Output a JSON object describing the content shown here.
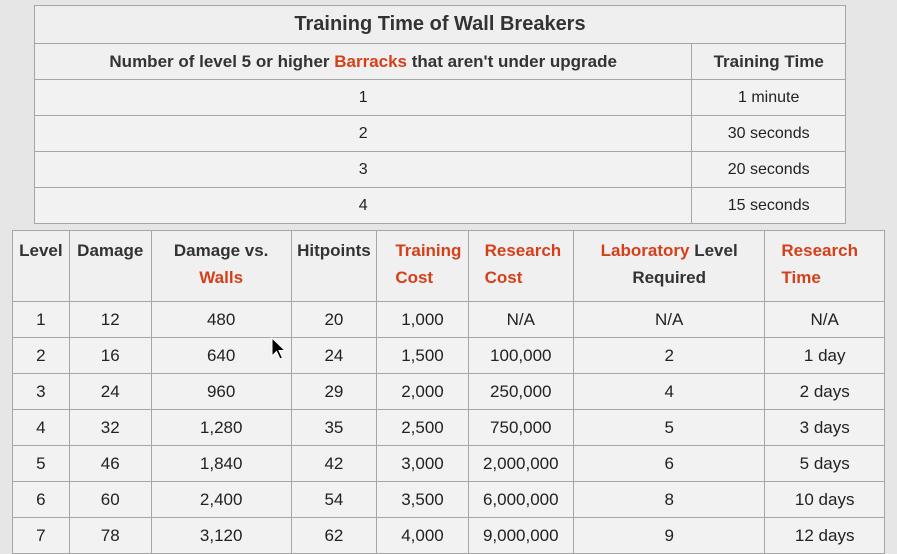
{
  "training_time_table": {
    "caption": "Training Time of Wall Breakers",
    "headers": {
      "barracks_prefix": "Number of level 5 or higher ",
      "barracks_link": "Barracks",
      "barracks_suffix": " that aren't under upgrade",
      "training_time": "Training Time"
    },
    "rows": [
      {
        "barracks": "1",
        "time": "1 minute"
      },
      {
        "barracks": "2",
        "time": "30 seconds"
      },
      {
        "barracks": "3",
        "time": "20 seconds"
      },
      {
        "barracks": "4",
        "time": "15 seconds"
      }
    ]
  },
  "stats_table": {
    "headers": {
      "level": "Level",
      "damage": "Damage",
      "damage_vs_prefix": "Damage vs.",
      "damage_vs_link": "Walls",
      "hitpoints": "Hitpoints",
      "training_cost_1": "Training",
      "training_cost_2": "Cost",
      "research_cost_1": "Research",
      "research_cost_2": "Cost",
      "lab_link": "Laboratory",
      "lab_suffix": " Level",
      "lab_line2": "Required",
      "research_time_1": "Research",
      "research_time_2": "Time"
    },
    "rows": [
      {
        "level": "1",
        "damage": "12",
        "walls": "480",
        "hp": "20",
        "tcost": "1,000",
        "rcost": "N/A",
        "lab": "N/A",
        "rtime": "N/A"
      },
      {
        "level": "2",
        "damage": "16",
        "walls": "640",
        "hp": "24",
        "tcost": "1,500",
        "rcost": "100,000",
        "lab": "2",
        "rtime": "1 day"
      },
      {
        "level": "3",
        "damage": "24",
        "walls": "960",
        "hp": "29",
        "tcost": "2,000",
        "rcost": "250,000",
        "lab": "4",
        "rtime": "2 days"
      },
      {
        "level": "4",
        "damage": "32",
        "walls": "1,280",
        "hp": "35",
        "tcost": "2,500",
        "rcost": "750,000",
        "lab": "5",
        "rtime": "3 days"
      },
      {
        "level": "5",
        "damage": "46",
        "walls": "1,840",
        "hp": "42",
        "tcost": "3,000",
        "rcost": "2,000,000",
        "lab": "6",
        "rtime": "5 days"
      },
      {
        "level": "6",
        "damage": "60",
        "walls": "2,400",
        "hp": "54",
        "tcost": "3,500",
        "rcost": "6,000,000",
        "lab": "8",
        "rtime": "10 days"
      },
      {
        "level": "7",
        "damage": "78",
        "walls": "3,120",
        "hp": "62",
        "tcost": "4,000",
        "rcost": "9,000,000",
        "lab": "9",
        "rtime": "12 days"
      }
    ]
  },
  "colors": {
    "link": "#d4401a",
    "background": "#e6e6e6",
    "border": "#a6a6a6"
  },
  "icons": {
    "cursor": "mouse-pointer-icon"
  }
}
